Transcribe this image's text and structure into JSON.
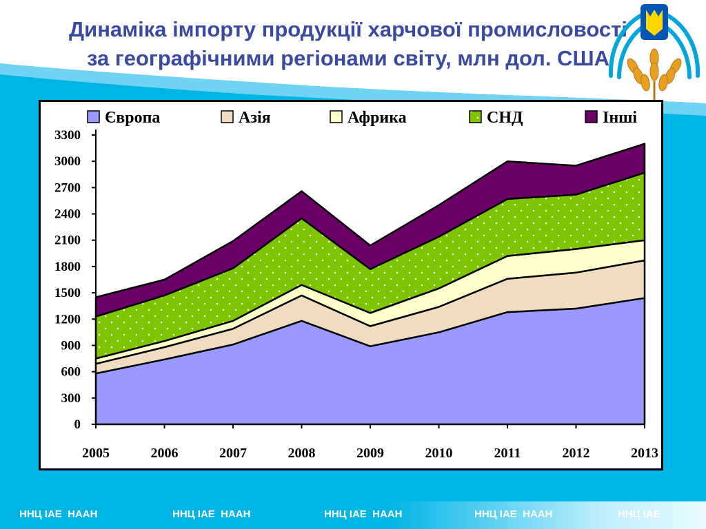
{
  "title": {
    "line1": "Динаміка імпорту продукції харчової промисловості",
    "line2": "за географічними регіонами світу, млн дол. США"
  },
  "colors": {
    "Європа": "#9999ff",
    "Азія": "#f0dcc0",
    "Африка": "#ffffcc",
    "СНД": "#7ec400",
    "Інші": "#6a0066",
    "title": "#3a4aa0",
    "slide_bg": "#00b4e6"
  },
  "logo": {
    "icon": "trident-wheat-emblem-icon"
  },
  "chart_data": {
    "type": "area",
    "stacked": true,
    "categories": [
      "2005",
      "2006",
      "2007",
      "2008",
      "2009",
      "2010",
      "2011",
      "2012",
      "2013"
    ],
    "series": [
      {
        "name": "Європа",
        "values": [
          580,
          740,
          910,
          1180,
          890,
          1050,
          1280,
          1320,
          1440
        ]
      },
      {
        "name": "Азія",
        "values": [
          110,
          140,
          180,
          290,
          230,
          290,
          380,
          410,
          430
        ]
      },
      {
        "name": "Африка",
        "values": [
          60,
          70,
          90,
          120,
          150,
          210,
          260,
          270,
          230
        ]
      },
      {
        "name": "СНД",
        "values": [
          480,
          520,
          600,
          760,
          500,
          590,
          650,
          620,
          770
        ]
      },
      {
        "name": "Інші",
        "values": [
          220,
          180,
          310,
          310,
          270,
          360,
          430,
          330,
          330
        ]
      }
    ],
    "yticks": [
      0,
      300,
      600,
      900,
      1200,
      1500,
      1800,
      2100,
      2400,
      2700,
      3000,
      3300
    ],
    "ylim": [
      0,
      3300
    ],
    "legend_position": "top",
    "grid": false
  },
  "footer": {
    "items": [
      "ННЦ ІАЕ  НААН",
      "ННЦ ІАЕ  НААН",
      "ННЦ ІАЕ  НААН",
      "ННЦ ІАЕ  НААН",
      "ННЦ ІАЕ"
    ]
  }
}
